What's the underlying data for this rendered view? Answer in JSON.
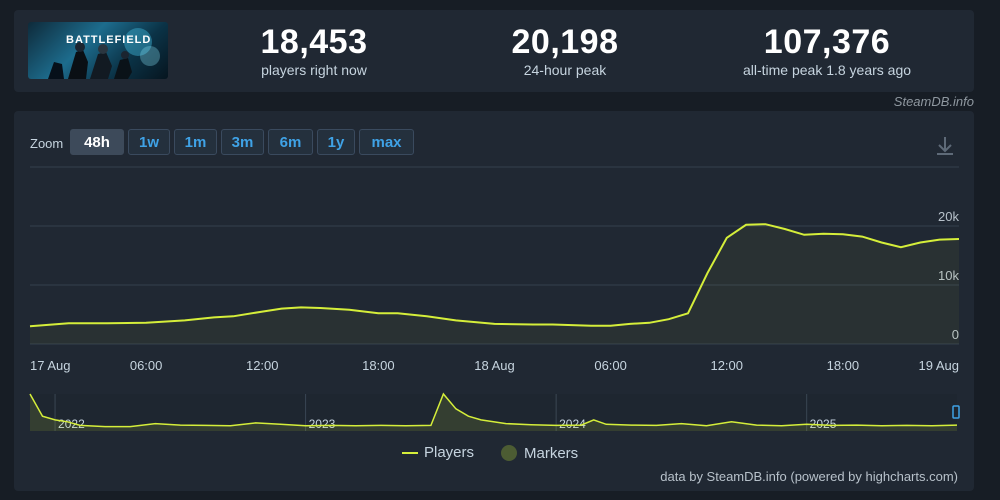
{
  "game": {
    "thumb_text": "BATTLEFIELD"
  },
  "stats": [
    {
      "value": "18,453",
      "label": "players right now"
    },
    {
      "value": "20,198",
      "label": "24-hour peak"
    },
    {
      "value": "107,376",
      "label": "all-time peak 1.8 years ago"
    }
  ],
  "credit": "SteamDB.info",
  "zoom": {
    "label": "Zoom",
    "options": [
      "48h",
      "1w",
      "1m",
      "3m",
      "6m",
      "1y",
      "max"
    ],
    "active": "48h"
  },
  "icons": {
    "download": "download-icon"
  },
  "colors": {
    "series": "#d5ee3a",
    "background": "#202833",
    "accent": "#3fa2e6"
  },
  "legend": {
    "players": "Players",
    "markers": "Markers"
  },
  "footer": "data by SteamDB.info (powered by highcharts.com)",
  "chart_data": {
    "type": "line",
    "series": [
      {
        "name": "Players",
        "x": [
          "17 Aug 00:00",
          "17 Aug 02:00",
          "17 Aug 04:00",
          "17 Aug 06:00",
          "17 Aug 08:00",
          "17 Aug 09:30",
          "17 Aug 10:30",
          "17 Aug 12:00",
          "17 Aug 13:00",
          "17 Aug 14:00",
          "17 Aug 15:00",
          "17 Aug 16:30",
          "17 Aug 18:00",
          "17 Aug 19:00",
          "17 Aug 20:30",
          "17 Aug 22:00",
          "18 Aug 00:00",
          "18 Aug 02:00",
          "18 Aug 03:00",
          "18 Aug 05:00",
          "18 Aug 06:00",
          "18 Aug 07:00",
          "18 Aug 08:00",
          "18 Aug 09:00",
          "18 Aug 10:00",
          "18 Aug 11:00",
          "18 Aug 12:00",
          "18 Aug 13:00",
          "18 Aug 14:00",
          "18 Aug 15:00",
          "18 Aug 16:00",
          "18 Aug 17:00",
          "18 Aug 18:00",
          "18 Aug 19:00",
          "18 Aug 20:00",
          "18 Aug 21:00",
          "18 Aug 22:00",
          "18 Aug 23:00",
          "19 Aug 00:00"
        ],
        "values": [
          3000,
          3500,
          3500,
          3600,
          4000,
          4500,
          4700,
          5500,
          6000,
          6200,
          6100,
          5800,
          5200,
          5200,
          4700,
          4000,
          3400,
          3300,
          3300,
          3100,
          3100,
          3400,
          3600,
          4200,
          5200,
          12000,
          18000,
          20200,
          20300,
          19500,
          18500,
          18700,
          18600,
          18200,
          17200,
          16400,
          17200,
          17700,
          17800
        ]
      }
    ],
    "x_ticks": [
      "17 Aug",
      "06:00",
      "12:00",
      "18:00",
      "18 Aug",
      "06:00",
      "12:00",
      "18:00",
      "19 Aug"
    ],
    "y_ticks": [
      "0",
      "10k",
      "20k"
    ],
    "ylim": [
      0,
      30000
    ],
    "navigator": {
      "year_labels": [
        "2022",
        "2023",
        "2024",
        "2025"
      ],
      "x": [
        2021.9,
        2021.95,
        2022.0,
        2022.05,
        2022.1,
        2022.2,
        2022.3,
        2022.4,
        2022.5,
        2022.6,
        2022.7,
        2022.8,
        2022.9,
        2023.0,
        2023.1,
        2023.2,
        2023.3,
        2023.4,
        2023.5,
        2023.55,
        2023.6,
        2023.65,
        2023.7,
        2023.75,
        2023.8,
        2023.9,
        2024.0,
        2024.1,
        2024.15,
        2024.2,
        2024.3,
        2024.4,
        2024.5,
        2024.6,
        2024.7,
        2024.8,
        2024.9,
        2025.0,
        2025.1,
        2025.2,
        2025.3,
        2025.4,
        2025.5,
        2025.6
      ],
      "values": [
        100,
        40,
        30,
        25,
        15,
        12,
        12,
        20,
        16,
        15,
        14,
        22,
        18,
        14,
        15,
        14,
        15,
        14,
        15,
        100,
        60,
        40,
        30,
        25,
        20,
        17,
        15,
        16,
        30,
        18,
        16,
        15,
        20,
        14,
        25,
        16,
        14,
        18,
        15,
        16,
        14,
        15,
        14,
        16
      ]
    }
  }
}
